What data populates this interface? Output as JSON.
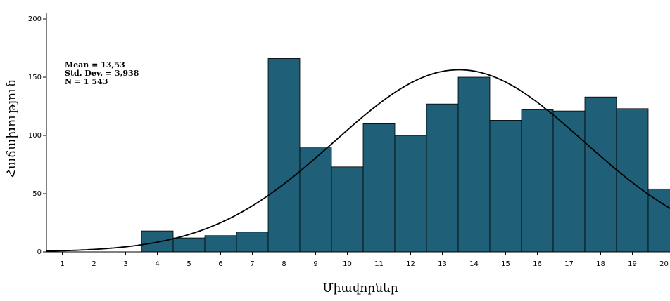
{
  "chart_data": {
    "type": "bar",
    "title": "",
    "xlabel": "Միավորներ",
    "ylabel": "Հաճախություն",
    "bin_width": 1,
    "categories": [
      "1",
      "2",
      "3",
      "4",
      "5",
      "6",
      "7",
      "8",
      "9",
      "10",
      "11",
      "12",
      "13",
      "14",
      "15",
      "16",
      "17",
      "18",
      "19",
      "20"
    ],
    "values": [
      0,
      0,
      0,
      18,
      12,
      14,
      17,
      166,
      90,
      73,
      110,
      100,
      127,
      150,
      113,
      122,
      121,
      133,
      123,
      54
    ],
    "ylim": [
      0,
      200
    ],
    "yticks": [
      0,
      50,
      100,
      150,
      200
    ],
    "grid": false,
    "bar_color": "#1f5f78",
    "curve_color": "#000000",
    "normal_curve": {
      "mean": 13.53,
      "sd": 3.938,
      "n": 1543
    },
    "stats_lines": [
      "Mean = 13,53",
      "Std. Dev. = 3,938",
      "N = 1 543"
    ]
  }
}
